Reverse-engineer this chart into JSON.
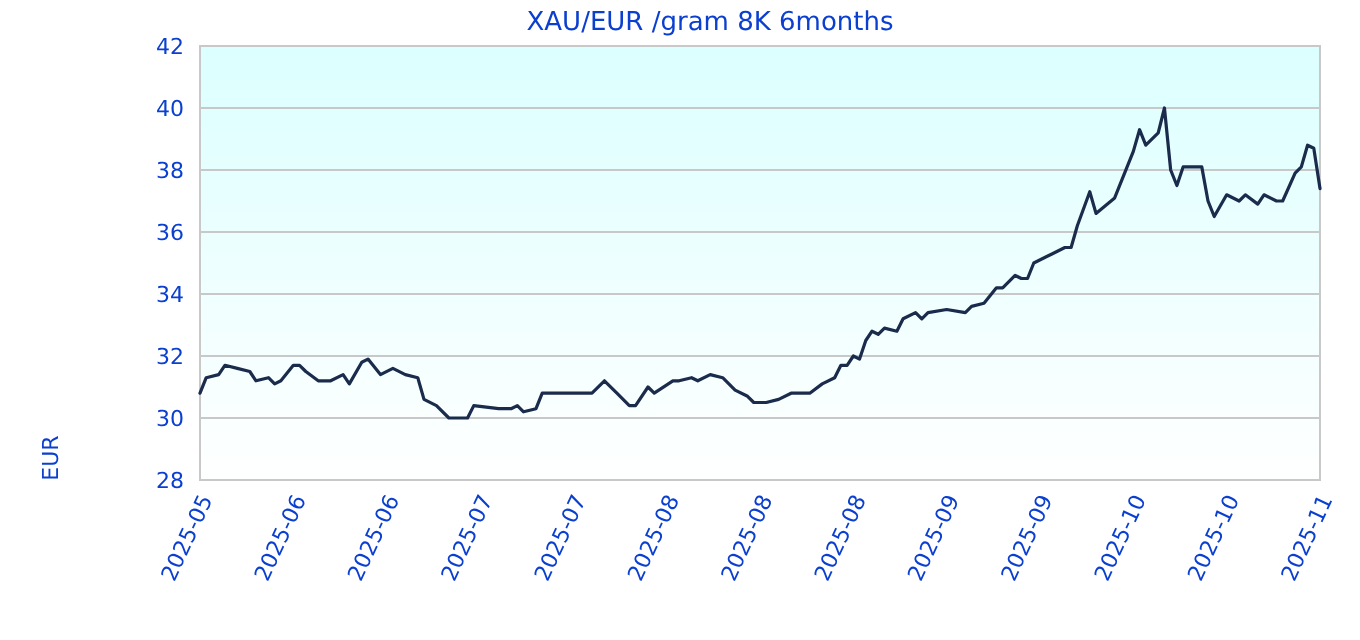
{
  "chart_data": {
    "type": "line",
    "title": "XAU/EUR /gram 8K 6months",
    "ylabel": "EUR",
    "x": [
      "2025-05-18",
      "2025-05-19",
      "2025-05-21",
      "2025-05-22",
      "2025-05-24",
      "2025-05-26",
      "2025-05-27",
      "2025-05-29",
      "2025-05-30",
      "2025-05-31",
      "2025-06-02",
      "2025-06-03",
      "2025-06-04",
      "2025-06-06",
      "2025-06-08",
      "2025-06-10",
      "2025-06-11",
      "2025-06-13",
      "2025-06-14",
      "2025-06-16",
      "2025-06-18",
      "2025-06-20",
      "2025-06-22",
      "2025-06-23",
      "2025-06-25",
      "2025-06-27",
      "2025-06-30",
      "2025-07-01",
      "2025-07-05",
      "2025-07-07",
      "2025-07-08",
      "2025-07-09",
      "2025-07-11",
      "2025-07-12",
      "2025-07-16",
      "2025-07-20",
      "2025-07-22",
      "2025-07-24",
      "2025-07-26",
      "2025-07-27",
      "2025-07-29",
      "2025-07-30",
      "2025-08-02",
      "2025-08-03",
      "2025-08-05",
      "2025-08-06",
      "2025-08-08",
      "2025-08-10",
      "2025-08-12",
      "2025-08-14",
      "2025-08-15",
      "2025-08-17",
      "2025-08-19",
      "2025-08-21",
      "2025-08-23",
      "2025-08-24",
      "2025-08-26",
      "2025-08-28",
      "2025-08-29",
      "2025-08-30",
      "2025-08-31",
      "2025-09-01",
      "2025-09-02",
      "2025-09-03",
      "2025-09-04",
      "2025-09-05",
      "2025-09-07",
      "2025-09-08",
      "2025-09-10",
      "2025-09-11",
      "2025-09-12",
      "2025-09-15",
      "2025-09-18",
      "2025-09-19",
      "2025-09-21",
      "2025-09-23",
      "2025-09-24",
      "2025-09-26",
      "2025-09-27",
      "2025-09-28",
      "2025-09-29",
      "2025-10-01",
      "2025-10-02",
      "2025-10-04",
      "2025-10-05",
      "2025-10-06",
      "2025-10-08",
      "2025-10-09",
      "2025-10-12",
      "2025-10-14",
      "2025-10-15",
      "2025-10-16",
      "2025-10-17",
      "2025-10-19",
      "2025-10-20",
      "2025-10-21",
      "2025-10-22",
      "2025-10-23",
      "2025-10-26",
      "2025-10-27",
      "2025-10-28",
      "2025-10-30",
      "2025-11-01",
      "2025-11-02",
      "2025-11-04",
      "2025-11-05",
      "2025-11-07",
      "2025-11-08",
      "2025-11-10",
      "2025-11-11",
      "2025-11-12",
      "2025-11-13",
      "2025-11-14"
    ],
    "series": [
      {
        "color": "#1a2b4c",
        "values": [
          30.8,
          31.3,
          31.4,
          31.7,
          31.6,
          31.5,
          31.2,
          31.3,
          31.1,
          31.2,
          31.7,
          31.7,
          31.5,
          31.2,
          31.2,
          31.4,
          31.1,
          31.8,
          31.9,
          31.4,
          31.6,
          31.4,
          31.3,
          30.6,
          30.4,
          30.0,
          30.0,
          30.4,
          30.3,
          30.3,
          30.4,
          30.2,
          30.3,
          30.8,
          30.8,
          30.8,
          31.2,
          30.8,
          30.4,
          30.4,
          31.0,
          30.8,
          31.2,
          31.2,
          31.3,
          31.2,
          31.4,
          31.3,
          30.9,
          30.7,
          30.5,
          30.5,
          30.6,
          30.8,
          30.8,
          30.8,
          31.1,
          31.3,
          31.7,
          31.7,
          32.0,
          31.9,
          32.5,
          32.8,
          32.7,
          32.9,
          32.8,
          33.2,
          33.4,
          33.2,
          33.4,
          33.5,
          33.4,
          33.6,
          33.7,
          34.2,
          34.2,
          34.6,
          34.5,
          34.5,
          35.0,
          35.2,
          35.3,
          35.5,
          35.5,
          36.2,
          37.3,
          36.6,
          37.1,
          38.1,
          38.6,
          39.3,
          38.8,
          39.2,
          40.0,
          38.0,
          37.5,
          38.1,
          38.1,
          37.0,
          36.5,
          37.2,
          37.0,
          37.2,
          36.9,
          37.2,
          37.0,
          37.0,
          37.9,
          38.1,
          38.8,
          38.7,
          37.4
        ]
      }
    ],
    "xlim": [
      "2025-05-18",
      "2025-11-14"
    ],
    "xticks": [
      {
        "value": "2025-05-18",
        "label": "2025-05"
      },
      {
        "value": "2025-06-02",
        "label": "2025-06"
      },
      {
        "value": "2025-06-17",
        "label": "2025-06"
      },
      {
        "value": "2025-07-02",
        "label": "2025-07"
      },
      {
        "value": "2025-07-17",
        "label": "2025-07"
      },
      {
        "value": "2025-08-01",
        "label": "2025-08"
      },
      {
        "value": "2025-08-16",
        "label": "2025-08"
      },
      {
        "value": "2025-08-31",
        "label": "2025-08"
      },
      {
        "value": "2025-09-15",
        "label": "2025-09"
      },
      {
        "value": "2025-09-30",
        "label": "2025-09"
      },
      {
        "value": "2025-10-15",
        "label": "2025-10"
      },
      {
        "value": "2025-10-30",
        "label": "2025-10"
      },
      {
        "value": "2025-11-14",
        "label": "2025-11"
      }
    ],
    "ylim": [
      28,
      42
    ],
    "yticks": [
      28,
      30,
      32,
      34,
      36,
      38,
      40,
      42
    ],
    "grid": "y",
    "marker": "none",
    "line_style": "solid"
  }
}
